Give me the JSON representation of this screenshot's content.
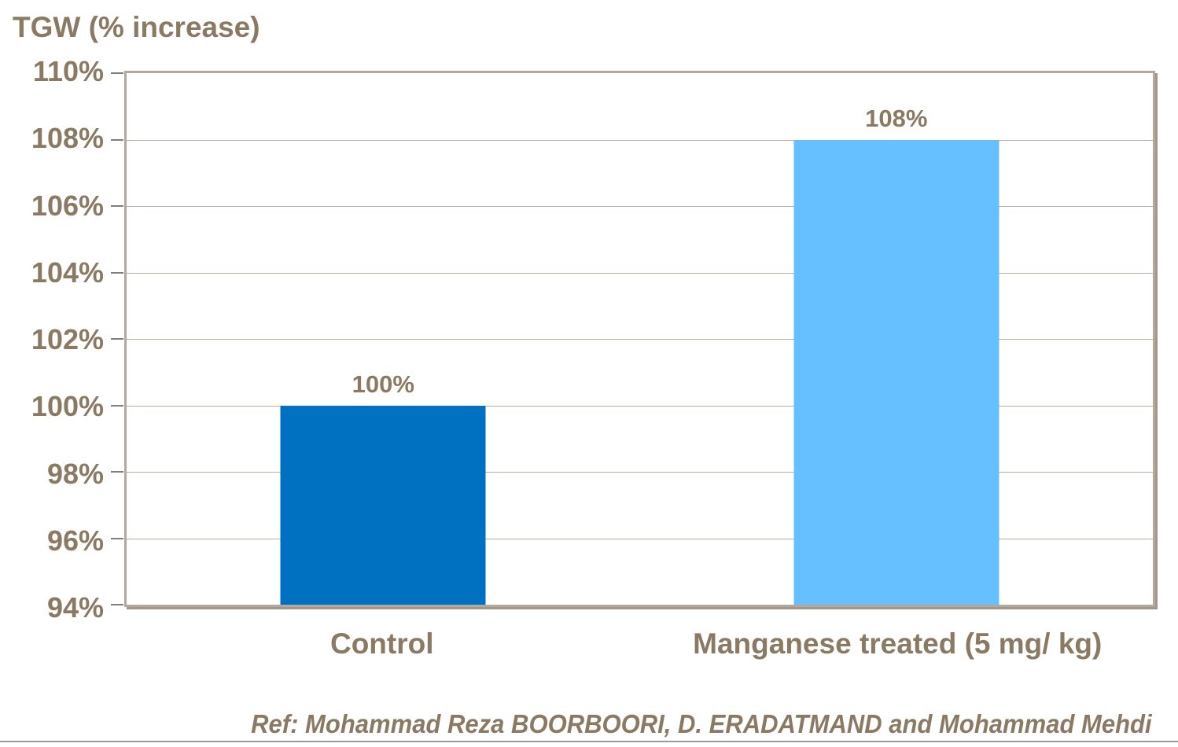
{
  "page": {
    "title": "TGW (% increase)",
    "footer_ref": "Ref: Mohammad Reza BOORBOORI, D. ERADATMAND and Mohammad Mehdi"
  },
  "colors": {
    "text_brown": "#8a7963",
    "plot_border": "#b2a89c",
    "plot_border_shadow": "#a29889",
    "gridline": "#b5ab9f",
    "tick": "#7f7f7f",
    "bottom_rule": "#9a9a9a",
    "bar_control": "#0070c0",
    "bar_treated": "#66bfff"
  },
  "chart_data": {
    "type": "bar",
    "title": "TGW (% increase)",
    "categories": [
      "Control",
      "Manganese treated (5 mg/ kg)"
    ],
    "values": [
      100,
      108
    ],
    "data_labels": [
      "100%",
      "108%"
    ],
    "bar_colors": [
      "#0070c0",
      "#66bfff"
    ],
    "xlabel": "",
    "ylabel": "TGW (% increase)",
    "ylim": [
      94,
      110
    ],
    "ytick_step": 2,
    "ytick_labels": [
      "94%",
      "96%",
      "98%",
      "100%",
      "102%",
      "104%",
      "106%",
      "108%",
      "110%"
    ],
    "grid": true,
    "legend_position": "none",
    "annotation": "Ref: Mohammad Reza BOORBOORI, D. ERADATMAND and Mohammad Mehdi"
  }
}
